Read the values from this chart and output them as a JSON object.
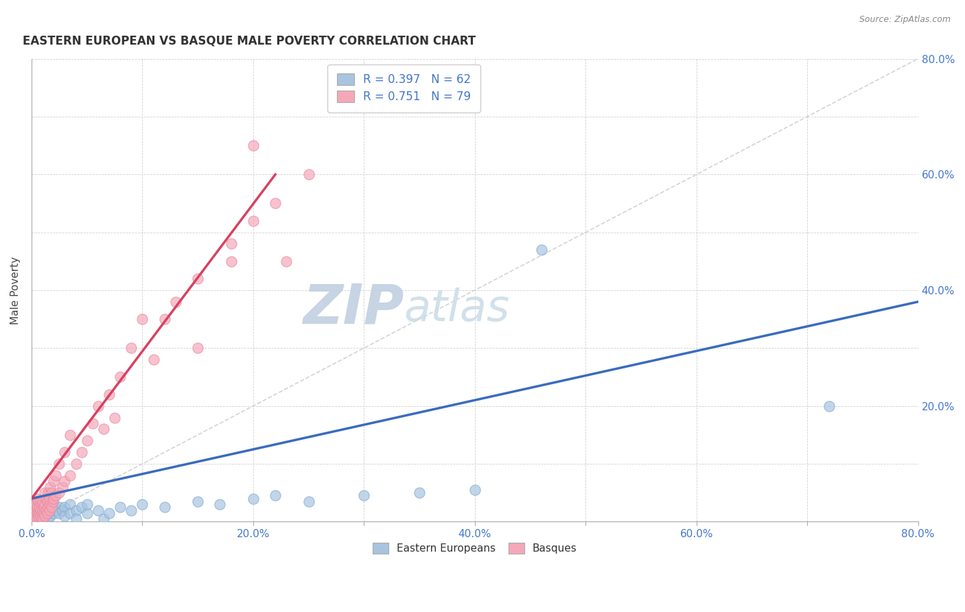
{
  "title": "EASTERN EUROPEAN VS BASQUE MALE POVERTY CORRELATION CHART",
  "source": "Source: ZipAtlas.com",
  "ylabel": "Male Poverty",
  "xlim": [
    0.0,
    0.8
  ],
  "ylim": [
    0.0,
    0.8
  ],
  "blue_R": 0.397,
  "blue_N": 62,
  "pink_R": 0.751,
  "pink_N": 79,
  "blue_color": "#a8c4e0",
  "pink_color": "#f4a8b8",
  "blue_line_color": "#3a6bbf",
  "pink_line_color": "#d94060",
  "diag_line_color": "#c8c8c8",
  "watermark_zip_color": "#c8d8e8",
  "watermark_atlas_color": "#d8e4ee",
  "blue_scatter": [
    [
      0.002,
      0.005
    ],
    [
      0.003,
      0.01
    ],
    [
      0.003,
      0.02
    ],
    [
      0.004,
      0.005
    ],
    [
      0.005,
      0.015
    ],
    [
      0.005,
      0.025
    ],
    [
      0.006,
      0.01
    ],
    [
      0.006,
      0.02
    ],
    [
      0.007,
      0.005
    ],
    [
      0.007,
      0.015
    ],
    [
      0.008,
      0.01
    ],
    [
      0.008,
      0.02
    ],
    [
      0.008,
      0.03
    ],
    [
      0.009,
      0.015
    ],
    [
      0.009,
      0.025
    ],
    [
      0.01,
      0.005
    ],
    [
      0.01,
      0.015
    ],
    [
      0.01,
      0.025
    ],
    [
      0.011,
      0.02
    ],
    [
      0.012,
      0.01
    ],
    [
      0.012,
      0.03
    ],
    [
      0.013,
      0.015
    ],
    [
      0.013,
      0.025
    ],
    [
      0.014,
      0.02
    ],
    [
      0.015,
      0.005
    ],
    [
      0.015,
      0.015
    ],
    [
      0.015,
      0.03
    ],
    [
      0.016,
      0.02
    ],
    [
      0.017,
      0.01
    ],
    [
      0.018,
      0.025
    ],
    [
      0.02,
      0.015
    ],
    [
      0.02,
      0.03
    ],
    [
      0.022,
      0.02
    ],
    [
      0.025,
      0.025
    ],
    [
      0.025,
      0.015
    ],
    [
      0.028,
      0.02
    ],
    [
      0.03,
      0.025
    ],
    [
      0.03,
      0.01
    ],
    [
      0.035,
      0.03
    ],
    [
      0.035,
      0.015
    ],
    [
      0.04,
      0.02
    ],
    [
      0.04,
      0.005
    ],
    [
      0.045,
      0.025
    ],
    [
      0.05,
      0.015
    ],
    [
      0.05,
      0.03
    ],
    [
      0.06,
      0.02
    ],
    [
      0.065,
      0.005
    ],
    [
      0.07,
      0.015
    ],
    [
      0.08,
      0.025
    ],
    [
      0.09,
      0.02
    ],
    [
      0.1,
      0.03
    ],
    [
      0.12,
      0.025
    ],
    [
      0.15,
      0.035
    ],
    [
      0.17,
      0.03
    ],
    [
      0.2,
      0.04
    ],
    [
      0.22,
      0.045
    ],
    [
      0.25,
      0.035
    ],
    [
      0.3,
      0.045
    ],
    [
      0.35,
      0.05
    ],
    [
      0.4,
      0.055
    ],
    [
      0.46,
      0.47
    ],
    [
      0.72,
      0.2
    ]
  ],
  "pink_scatter": [
    [
      0.001,
      0.005
    ],
    [
      0.001,
      0.015
    ],
    [
      0.002,
      0.01
    ],
    [
      0.002,
      0.02
    ],
    [
      0.002,
      0.03
    ],
    [
      0.003,
      0.005
    ],
    [
      0.003,
      0.015
    ],
    [
      0.003,
      0.025
    ],
    [
      0.004,
      0.01
    ],
    [
      0.004,
      0.02
    ],
    [
      0.004,
      0.03
    ],
    [
      0.005,
      0.015
    ],
    [
      0.005,
      0.025
    ],
    [
      0.005,
      0.04
    ],
    [
      0.006,
      0.01
    ],
    [
      0.006,
      0.02
    ],
    [
      0.006,
      0.035
    ],
    [
      0.007,
      0.015
    ],
    [
      0.007,
      0.025
    ],
    [
      0.008,
      0.01
    ],
    [
      0.008,
      0.02
    ],
    [
      0.008,
      0.035
    ],
    [
      0.009,
      0.015
    ],
    [
      0.009,
      0.03
    ],
    [
      0.01,
      0.005
    ],
    [
      0.01,
      0.02
    ],
    [
      0.01,
      0.035
    ],
    [
      0.011,
      0.015
    ],
    [
      0.011,
      0.025
    ],
    [
      0.012,
      0.01
    ],
    [
      0.012,
      0.03
    ],
    [
      0.012,
      0.05
    ],
    [
      0.013,
      0.02
    ],
    [
      0.013,
      0.04
    ],
    [
      0.014,
      0.015
    ],
    [
      0.014,
      0.035
    ],
    [
      0.015,
      0.025
    ],
    [
      0.015,
      0.05
    ],
    [
      0.016,
      0.02
    ],
    [
      0.016,
      0.04
    ],
    [
      0.017,
      0.03
    ],
    [
      0.017,
      0.06
    ],
    [
      0.018,
      0.025
    ],
    [
      0.018,
      0.05
    ],
    [
      0.019,
      0.035
    ],
    [
      0.02,
      0.04
    ],
    [
      0.02,
      0.07
    ],
    [
      0.022,
      0.045
    ],
    [
      0.022,
      0.08
    ],
    [
      0.025,
      0.05
    ],
    [
      0.025,
      0.1
    ],
    [
      0.028,
      0.06
    ],
    [
      0.03,
      0.07
    ],
    [
      0.03,
      0.12
    ],
    [
      0.035,
      0.08
    ],
    [
      0.035,
      0.15
    ],
    [
      0.04,
      0.1
    ],
    [
      0.045,
      0.12
    ],
    [
      0.05,
      0.14
    ],
    [
      0.055,
      0.17
    ],
    [
      0.06,
      0.2
    ],
    [
      0.065,
      0.16
    ],
    [
      0.07,
      0.22
    ],
    [
      0.075,
      0.18
    ],
    [
      0.08,
      0.25
    ],
    [
      0.09,
      0.3
    ],
    [
      0.1,
      0.35
    ],
    [
      0.11,
      0.28
    ],
    [
      0.13,
      0.38
    ],
    [
      0.15,
      0.42
    ],
    [
      0.18,
      0.48
    ],
    [
      0.2,
      0.52
    ],
    [
      0.22,
      0.55
    ],
    [
      0.23,
      0.45
    ],
    [
      0.25,
      0.6
    ],
    [
      0.2,
      0.65
    ],
    [
      0.18,
      0.45
    ],
    [
      0.15,
      0.3
    ],
    [
      0.12,
      0.35
    ]
  ],
  "blue_line_x": [
    0.0,
    0.8
  ],
  "blue_line_y": [
    0.04,
    0.38
  ],
  "pink_line_x": [
    0.0,
    0.22
  ],
  "pink_line_y": [
    0.04,
    0.6
  ],
  "figsize": [
    14.06,
    8.92
  ],
  "dpi": 100
}
